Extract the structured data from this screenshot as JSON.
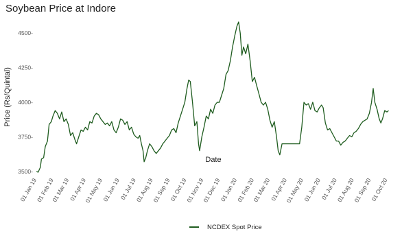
{
  "chart_data": {
    "type": "line",
    "title": "Soybean Price at Indore",
    "xlabel": "Date",
    "ylabel": "Price (Rs/Quintal)",
    "ylim": [
      3475,
      4600
    ],
    "yticks": [
      3500,
      3750,
      4000,
      4250,
      4500
    ],
    "ytick_labels": [
      "3500-",
      "3750-",
      "4000-",
      "4250-",
      "4500-"
    ],
    "xlim": [
      "2018-12-28",
      "2020-10-10"
    ],
    "xticks": [
      "2019-01-01",
      "2019-02-01",
      "2019-03-01",
      "2019-04-01",
      "2019-05-01",
      "2019-06-01",
      "2019-07-01",
      "2019-08-01",
      "2019-09-01",
      "2019-10-01",
      "2019-11-01",
      "2019-12-01",
      "2020-01-01",
      "2020-02-01",
      "2020-03-01",
      "2020-04-01",
      "2020-05-01",
      "2020-06-01",
      "2020-07-01",
      "2020-08-01",
      "2020-09-01",
      "2020-10-01"
    ],
    "xtick_labels": [
      "01 Jan 19",
      "01 Feb 19",
      "01 Mar 19",
      "01 Apr 19",
      "01 May 19",
      "01 Jun 19",
      "01 Jul 19",
      "01 Aug 19",
      "01 Sep 19",
      "01 Oct 19",
      "01 Nov 19",
      "01 Dec 19",
      "01 Jan 20",
      "01 Feb 20",
      "01 Mar 20",
      "01 Apr 20",
      "01 May 20",
      "01 Jun 20",
      "01 Jul 20",
      "01 Aug 20",
      "01 Sep 20",
      "01 Oct 20"
    ],
    "grid": false,
    "legend_position": "bottom",
    "series": [
      {
        "name": "NCDEX Spot Price",
        "color": "#1f5c1f",
        "points": [
          [
            "2019-01-01",
            3500
          ],
          [
            "2019-01-04",
            3495
          ],
          [
            "2019-01-08",
            3530
          ],
          [
            "2019-01-10",
            3590
          ],
          [
            "2019-01-14",
            3600
          ],
          [
            "2019-01-17",
            3680
          ],
          [
            "2019-01-21",
            3720
          ],
          [
            "2019-01-24",
            3840
          ],
          [
            "2019-01-28",
            3860
          ],
          [
            "2019-01-31",
            3900
          ],
          [
            "2019-02-04",
            3940
          ],
          [
            "2019-02-08",
            3920
          ],
          [
            "2019-02-12",
            3880
          ],
          [
            "2019-02-16",
            3930
          ],
          [
            "2019-02-20",
            3860
          ],
          [
            "2019-02-24",
            3880
          ],
          [
            "2019-02-28",
            3840
          ],
          [
            "2019-03-04",
            3760
          ],
          [
            "2019-03-08",
            3780
          ],
          [
            "2019-03-12",
            3730
          ],
          [
            "2019-03-15",
            3700
          ],
          [
            "2019-03-19",
            3750
          ],
          [
            "2019-03-23",
            3800
          ],
          [
            "2019-03-27",
            3790
          ],
          [
            "2019-03-31",
            3820
          ],
          [
            "2019-04-04",
            3800
          ],
          [
            "2019-04-08",
            3860
          ],
          [
            "2019-04-12",
            3850
          ],
          [
            "2019-04-16",
            3900
          ],
          [
            "2019-04-20",
            3920
          ],
          [
            "2019-04-24",
            3910
          ],
          [
            "2019-04-28",
            3880
          ],
          [
            "2019-05-02",
            3860
          ],
          [
            "2019-05-06",
            3840
          ],
          [
            "2019-05-10",
            3850
          ],
          [
            "2019-05-14",
            3830
          ],
          [
            "2019-05-18",
            3860
          ],
          [
            "2019-05-22",
            3800
          ],
          [
            "2019-05-26",
            3780
          ],
          [
            "2019-05-30",
            3820
          ],
          [
            "2019-06-03",
            3880
          ],
          [
            "2019-06-07",
            3870
          ],
          [
            "2019-06-11",
            3840
          ],
          [
            "2019-06-15",
            3860
          ],
          [
            "2019-06-19",
            3800
          ],
          [
            "2019-06-23",
            3820
          ],
          [
            "2019-06-27",
            3770
          ],
          [
            "2019-07-01",
            3750
          ],
          [
            "2019-07-05",
            3740
          ],
          [
            "2019-07-08",
            3760
          ],
          [
            "2019-07-11",
            3700
          ],
          [
            "2019-07-14",
            3650
          ],
          [
            "2019-07-16",
            3570
          ],
          [
            "2019-07-19",
            3600
          ],
          [
            "2019-07-22",
            3650
          ],
          [
            "2019-07-26",
            3700
          ],
          [
            "2019-07-30",
            3680
          ],
          [
            "2019-08-03",
            3650
          ],
          [
            "2019-08-07",
            3630
          ],
          [
            "2019-08-11",
            3650
          ],
          [
            "2019-08-15",
            3670
          ],
          [
            "2019-08-19",
            3700
          ],
          [
            "2019-08-23",
            3720
          ],
          [
            "2019-08-27",
            3740
          ],
          [
            "2019-08-31",
            3760
          ],
          [
            "2019-09-04",
            3800
          ],
          [
            "2019-09-08",
            3810
          ],
          [
            "2019-09-12",
            3780
          ],
          [
            "2019-09-16",
            3850
          ],
          [
            "2019-09-20",
            3900
          ],
          [
            "2019-09-24",
            3950
          ],
          [
            "2019-09-28",
            4000
          ],
          [
            "2019-10-02",
            4100
          ],
          [
            "2019-10-05",
            4160
          ],
          [
            "2019-10-08",
            4150
          ],
          [
            "2019-10-12",
            4000
          ],
          [
            "2019-10-16",
            3830
          ],
          [
            "2019-10-20",
            3860
          ],
          [
            "2019-10-23",
            3700
          ],
          [
            "2019-10-25",
            3650
          ],
          [
            "2019-10-29",
            3750
          ],
          [
            "2019-11-02",
            3820
          ],
          [
            "2019-11-06",
            3900
          ],
          [
            "2019-11-10",
            3880
          ],
          [
            "2019-11-14",
            3950
          ],
          [
            "2019-11-18",
            3920
          ],
          [
            "2019-11-22",
            3980
          ],
          [
            "2019-11-26",
            4000
          ],
          [
            "2019-11-30",
            4000
          ],
          [
            "2019-12-04",
            4050
          ],
          [
            "2019-12-08",
            4100
          ],
          [
            "2019-12-12",
            4200
          ],
          [
            "2019-12-16",
            4230
          ],
          [
            "2019-12-20",
            4300
          ],
          [
            "2019-12-24",
            4400
          ],
          [
            "2019-12-28",
            4480
          ],
          [
            "2020-01-01",
            4550
          ],
          [
            "2020-01-04",
            4580
          ],
          [
            "2020-01-07",
            4500
          ],
          [
            "2020-01-10",
            4340
          ],
          [
            "2020-01-13",
            4400
          ],
          [
            "2020-01-17",
            4350
          ],
          [
            "2020-01-21",
            4420
          ],
          [
            "2020-01-25",
            4300
          ],
          [
            "2020-01-29",
            4150
          ],
          [
            "2020-02-02",
            4180
          ],
          [
            "2020-02-06",
            4120
          ],
          [
            "2020-02-10",
            4060
          ],
          [
            "2020-02-14",
            4000
          ],
          [
            "2020-02-18",
            3980
          ],
          [
            "2020-02-22",
            4000
          ],
          [
            "2020-02-26",
            3950
          ],
          [
            "2020-03-01",
            3870
          ],
          [
            "2020-03-05",
            3820
          ],
          [
            "2020-03-09",
            3860
          ],
          [
            "2020-03-13",
            3750
          ],
          [
            "2020-03-16",
            3650
          ],
          [
            "2020-03-19",
            3620
          ],
          [
            "2020-03-23",
            3700
          ],
          [
            "2020-04-20",
            3700
          ],
          [
            "2020-04-24",
            3700
          ],
          [
            "2020-04-28",
            3820
          ],
          [
            "2020-05-02",
            4000
          ],
          [
            "2020-05-06",
            3980
          ],
          [
            "2020-05-10",
            3990
          ],
          [
            "2020-05-14",
            3950
          ],
          [
            "2020-05-18",
            4000
          ],
          [
            "2020-05-22",
            3940
          ],
          [
            "2020-05-26",
            3930
          ],
          [
            "2020-05-30",
            3960
          ],
          [
            "2020-06-03",
            3980
          ],
          [
            "2020-06-06",
            3960
          ],
          [
            "2020-06-10",
            3850
          ],
          [
            "2020-06-14",
            3800
          ],
          [
            "2020-06-18",
            3810
          ],
          [
            "2020-06-22",
            3780
          ],
          [
            "2020-06-26",
            3750
          ],
          [
            "2020-06-30",
            3720
          ],
          [
            "2020-07-04",
            3720
          ],
          [
            "2020-07-08",
            3690
          ],
          [
            "2020-07-12",
            3710
          ],
          [
            "2020-07-16",
            3720
          ],
          [
            "2020-07-20",
            3740
          ],
          [
            "2020-07-24",
            3760
          ],
          [
            "2020-07-28",
            3750
          ],
          [
            "2020-08-01",
            3780
          ],
          [
            "2020-08-05",
            3790
          ],
          [
            "2020-08-09",
            3810
          ],
          [
            "2020-08-13",
            3840
          ],
          [
            "2020-08-17",
            3860
          ],
          [
            "2020-08-21",
            3870
          ],
          [
            "2020-08-25",
            3880
          ],
          [
            "2020-08-29",
            3920
          ],
          [
            "2020-09-02",
            4000
          ],
          [
            "2020-09-05",
            4100
          ],
          [
            "2020-09-08",
            4000
          ],
          [
            "2020-09-12",
            3950
          ],
          [
            "2020-09-16",
            3880
          ],
          [
            "2020-09-19",
            3850
          ],
          [
            "2020-09-22",
            3880
          ],
          [
            "2020-09-26",
            3940
          ],
          [
            "2020-09-30",
            3930
          ],
          [
            "2020-10-03",
            3940
          ]
        ]
      }
    ]
  }
}
